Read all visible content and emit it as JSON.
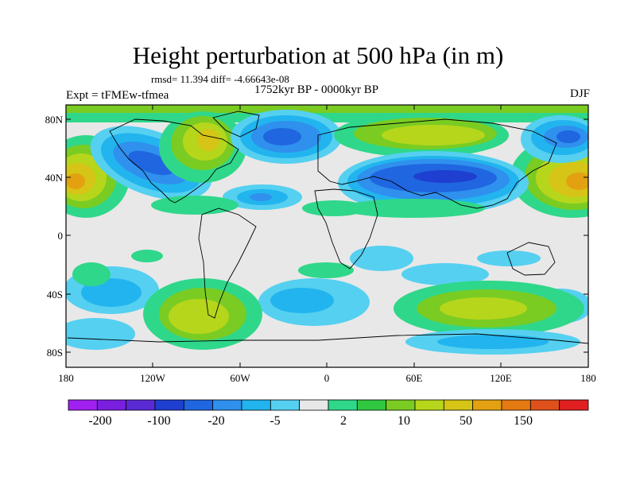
{
  "title": "Height perturbation at 500 hPa (in m)",
  "stats_line": "rmsd= 11.394 diff= -4.66643e-08",
  "period": "1752kyr BP - 0000kyr BP",
  "experiment": "Expt = tFMEw-tfmea",
  "season": "DJF",
  "lat_labels": [
    "80N",
    "40N",
    "0",
    "40S",
    "80S"
  ],
  "lon_labels": [
    "180",
    "120W",
    "60W",
    "0",
    "60E",
    "120E",
    "180"
  ],
  "colorbar": {
    "colors": [
      "#a020f0",
      "#7a1fdf",
      "#5a2bd4",
      "#1f3fd0",
      "#1f66e0",
      "#2f90ee",
      "#22b4ee",
      "#55d0f0",
      "#e8e8e8",
      "#2fd78a",
      "#2fc840",
      "#7acc22",
      "#b6d61c",
      "#d6c416",
      "#e3a112",
      "#e57a12",
      "#e0501a",
      "#e02020"
    ],
    "labels": [
      "-200",
      "-100",
      "-20",
      "-5",
      "2",
      "10",
      "50",
      "150"
    ]
  }
}
